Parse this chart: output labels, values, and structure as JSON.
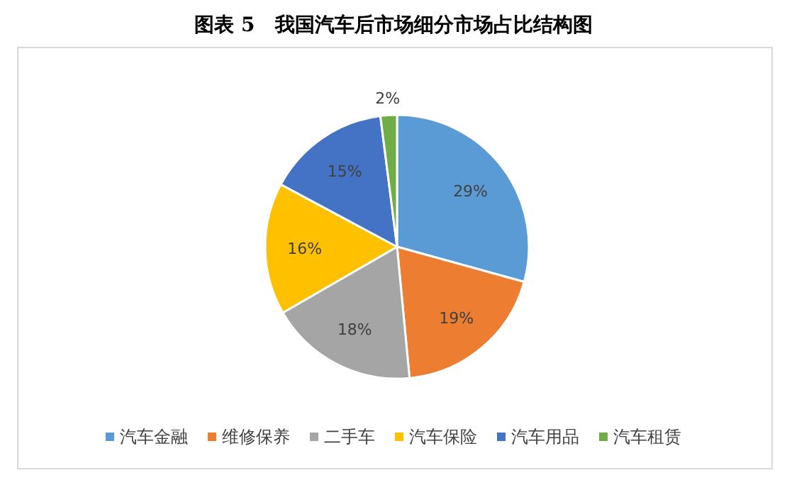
{
  "chart_data": {
    "type": "pie",
    "title": "图表 5　我国汽车后市场细分市场占比结构图",
    "categories": [
      "汽车金融",
      "维修保养",
      "二手车",
      "汽车保险",
      "汽车用品",
      "汽车租赁"
    ],
    "values": [
      29,
      19,
      18,
      16,
      15,
      2
    ],
    "colors": [
      "#5b9bd5",
      "#ed7d31",
      "#a5a5a5",
      "#ffc000",
      "#4472c4",
      "#70ad47"
    ],
    "value_labels": [
      "29%",
      "19%",
      "18%",
      "16%",
      "15%",
      "2%"
    ],
    "legend": "bottom"
  }
}
